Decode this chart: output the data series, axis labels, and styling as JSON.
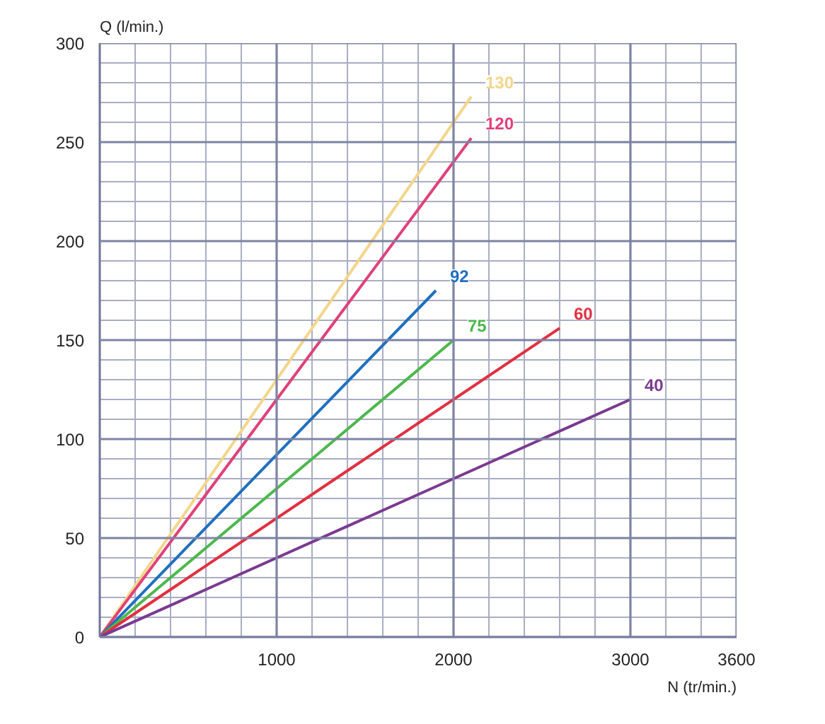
{
  "chart_data": {
    "type": "line",
    "xlabel": "N (tr/min.)",
    "ylabel": "Q (l/min.)",
    "xlim": [
      0,
      3600
    ],
    "ylim": [
      0,
      300
    ],
    "xticks": [
      {
        "value": 0,
        "label": null
      },
      {
        "value": 200,
        "label": null
      },
      {
        "value": 400,
        "label": null
      },
      {
        "value": 600,
        "label": null
      },
      {
        "value": 800,
        "label": null
      },
      1000,
      {
        "value": 1200,
        "label": null
      },
      {
        "value": 1400,
        "label": null
      },
      {
        "value": 1600,
        "label": null
      },
      {
        "value": 1800,
        "label": null
      },
      2000,
      {
        "value": 2200,
        "label": null
      },
      {
        "value": 2400,
        "label": null
      },
      {
        "value": 2600,
        "label": null
      },
      {
        "value": 2800,
        "label": null
      },
      3000,
      {
        "value": 3200,
        "label": null
      },
      {
        "value": 3400,
        "label": null
      },
      3600
    ],
    "yticks": [
      0,
      {
        "value": 10,
        "label": null
      },
      {
        "value": 20,
        "label": null
      },
      {
        "value": 30,
        "label": null
      },
      {
        "value": 40,
        "label": null
      },
      50,
      {
        "value": 60,
        "label": null
      },
      {
        "value": 70,
        "label": null
      },
      {
        "value": 80,
        "label": null
      },
      {
        "value": 90,
        "label": null
      },
      100,
      {
        "value": 110,
        "label": null
      },
      {
        "value": 120,
        "label": null
      },
      {
        "value": 130,
        "label": null
      },
      {
        "value": 140,
        "label": null
      },
      150,
      {
        "value": 160,
        "label": null
      },
      {
        "value": 170,
        "label": null
      },
      {
        "value": 180,
        "label": null
      },
      {
        "value": 190,
        "label": null
      },
      200,
      {
        "value": 210,
        "label": null
      },
      {
        "value": 220,
        "label": null
      },
      {
        "value": 230,
        "label": null
      },
      {
        "value": 240,
        "label": null
      },
      250,
      {
        "value": 260,
        "label": null
      },
      {
        "value": 270,
        "label": null
      },
      {
        "value": 280,
        "label": null
      },
      {
        "value": 290,
        "label": null
      },
      300
    ],
    "grid": true,
    "series": [
      {
        "name": "130",
        "color": "#f2d68c",
        "x": [
          0,
          2100
        ],
        "values": [
          0,
          273
        ]
      },
      {
        "name": "120",
        "color": "#e0407a",
        "x": [
          0,
          2100
        ],
        "values": [
          0,
          252
        ]
      },
      {
        "name": "92",
        "color": "#1f6fc0",
        "x": [
          0,
          1900
        ],
        "values": [
          0,
          175
        ]
      },
      {
        "name": "75",
        "color": "#4cb84c",
        "x": [
          0,
          2000
        ],
        "values": [
          0,
          150
        ]
      },
      {
        "name": "60",
        "color": "#e03040",
        "x": [
          0,
          2600
        ],
        "values": [
          0,
          156
        ]
      },
      {
        "name": "40",
        "color": "#7a3a90",
        "x": [
          0,
          3000
        ],
        "values": [
          0,
          120
        ]
      }
    ]
  }
}
